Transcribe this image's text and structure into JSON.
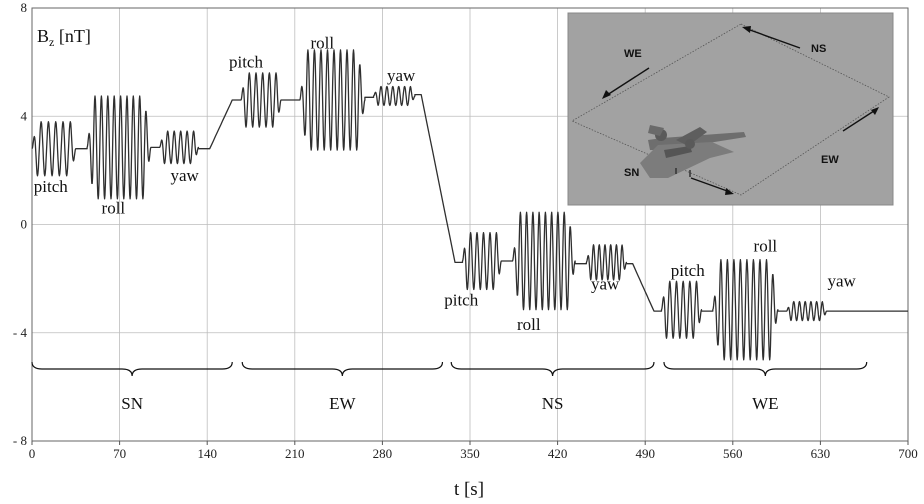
{
  "chart_data": {
    "type": "line",
    "ylabel_main": "B",
    "ylabel_sub": "z",
    "ylabel_unit": " [nT]",
    "xlabel": "t [s]",
    "xlim": [
      0,
      700
    ],
    "ylim": [
      -8,
      8
    ],
    "xticks": [
      "0",
      "70",
      "140",
      "210",
      "280",
      "350",
      "420",
      "490",
      "560",
      "630",
      "700"
    ],
    "yticks": [
      "8",
      "4",
      "0",
      "- 4",
      "- 8"
    ],
    "grid": true,
    "segments": [
      {
        "name": "SN",
        "x0": 0,
        "x1": 160
      },
      {
        "name": "EW",
        "x0": 168,
        "x1": 328
      },
      {
        "name": "NS",
        "x0": 335,
        "x1": 497
      },
      {
        "name": "WE",
        "x0": 505,
        "x1": 667
      }
    ],
    "annotations": [
      {
        "text": "pitch",
        "x": 15,
        "y": 1.2
      },
      {
        "text": "roll",
        "x": 65,
        "y": 0.4
      },
      {
        "text": "yaw",
        "x": 122,
        "y": 1.6
      },
      {
        "text": "pitch",
        "x": 171,
        "y": 5.8
      },
      {
        "text": "roll",
        "x": 232,
        "y": 6.5
      },
      {
        "text": "yaw",
        "x": 295,
        "y": 5.3
      },
      {
        "text": "pitch",
        "x": 343,
        "y": -3.0
      },
      {
        "text": "roll",
        "x": 397,
        "y": -3.9
      },
      {
        "text": "yaw",
        "x": 458,
        "y": -2.4
      },
      {
        "text": "pitch",
        "x": 524,
        "y": -1.9
      },
      {
        "text": "roll",
        "x": 586,
        "y": -1.0
      },
      {
        "text": "yaw",
        "x": 647,
        "y": -2.3
      }
    ],
    "series": [
      {
        "maneuvers": [
          {
            "x0": 0,
            "x1": 35,
            "center": 2.8,
            "amp": 1.0,
            "cycles": 6
          },
          {
            "x0": 35,
            "x1": 44,
            "center": 2.8,
            "amp": 0.0,
            "cycles": 0
          },
          {
            "x0": 44,
            "x1": 95,
            "center": 2.85,
            "amp": 1.9,
            "cycles": 10
          },
          {
            "x0": 95,
            "x1": 102,
            "center": 2.85,
            "amp": 0.0,
            "cycles": 0
          },
          {
            "x0": 102,
            "x1": 133,
            "center": 2.85,
            "amp": 0.6,
            "cycles": 6
          },
          {
            "x0": 133,
            "x1": 142,
            "center": 2.8,
            "amp": 0.0,
            "cycles": 0
          },
          {
            "x0": 142,
            "x1": 160,
            "ramp_to": 4.6
          },
          {
            "x0": 160,
            "x1": 167,
            "center": 4.6,
            "amp": 0.0,
            "cycles": 0
          },
          {
            "x0": 167,
            "x1": 199,
            "center": 4.6,
            "amp": 1.0,
            "cycles": 6
          },
          {
            "x0": 199,
            "x1": 214,
            "center": 4.6,
            "amp": 0.0,
            "cycles": 0
          },
          {
            "x0": 214,
            "x1": 266,
            "center": 4.6,
            "amp": 1.85,
            "cycles": 10
          },
          {
            "x0": 266,
            "x1": 273,
            "center": 4.7,
            "amp": 0.0,
            "cycles": 0
          },
          {
            "x0": 273,
            "x1": 306,
            "center": 4.75,
            "amp": 0.35,
            "cycles": 7
          },
          {
            "x0": 306,
            "x1": 311,
            "center": 4.8,
            "amp": 0.0,
            "cycles": 0
          },
          {
            "x0": 311,
            "x1": 338,
            "ramp_to": -1.4
          },
          {
            "x0": 338,
            "x1": 344,
            "center": -1.4,
            "amp": 0.0,
            "cycles": 0
          },
          {
            "x0": 344,
            "x1": 375,
            "center": -1.35,
            "amp": 1.05,
            "cycles": 6
          },
          {
            "x0": 375,
            "x1": 384,
            "center": -1.35,
            "amp": 0.0,
            "cycles": 0
          },
          {
            "x0": 384,
            "x1": 434,
            "center": -1.35,
            "amp": 1.8,
            "cycles": 10
          },
          {
            "x0": 434,
            "x1": 443,
            "center": -1.45,
            "amp": 0.0,
            "cycles": 0
          },
          {
            "x0": 443,
            "x1": 475,
            "center": -1.4,
            "amp": 0.65,
            "cycles": 7
          },
          {
            "x0": 475,
            "x1": 480,
            "center": -1.45,
            "amp": 0.0,
            "cycles": 0
          },
          {
            "x0": 480,
            "x1": 497,
            "ramp_to": -3.2
          },
          {
            "x0": 497,
            "x1": 503,
            "center": -3.2,
            "amp": 0.0,
            "cycles": 0
          },
          {
            "x0": 503,
            "x1": 535,
            "center": -3.15,
            "amp": 1.05,
            "cycles": 6
          },
          {
            "x0": 535,
            "x1": 544,
            "center": -3.2,
            "amp": 0.0,
            "cycles": 0
          },
          {
            "x0": 544,
            "x1": 596,
            "center": -3.15,
            "amp": 1.85,
            "cycles": 10
          },
          {
            "x0": 596,
            "x1": 603,
            "center": -3.2,
            "amp": 0.0,
            "cycles": 0
          },
          {
            "x0": 603,
            "x1": 635,
            "center": -3.2,
            "amp": 0.35,
            "cycles": 7
          },
          {
            "x0": 635,
            "x1": 700,
            "center": -3.2,
            "amp": 0.0,
            "cycles": 0
          }
        ]
      }
    ],
    "inset": {
      "labels": [
        "WE",
        "NS",
        "SN",
        "EW"
      ]
    },
    "colors": {
      "line": "#2f2f2f",
      "grid": "#bdbdbd",
      "inset_bg": "#a2a2a2"
    }
  }
}
